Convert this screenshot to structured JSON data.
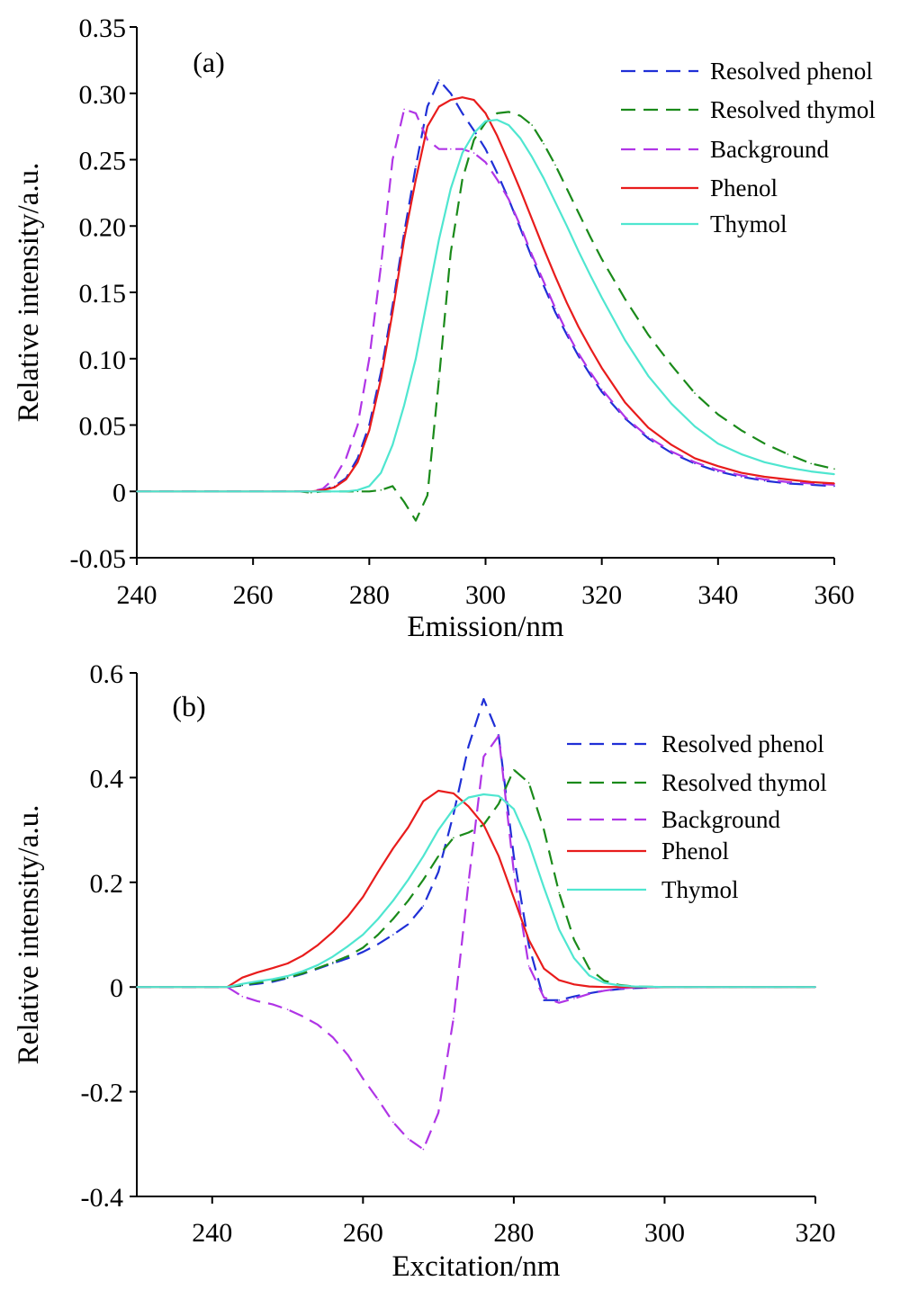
{
  "chart_data": [
    {
      "type": "line",
      "panel_label": "(a)",
      "xlabel": "Emission/nm",
      "ylabel": "Relative intensity/a.u.",
      "xlim": [
        240,
        360
      ],
      "ylim": [
        -0.05,
        0.35
      ],
      "xticks": [
        240,
        260,
        280,
        300,
        320,
        340,
        360
      ],
      "xtick_labels": [
        "240",
        "260",
        "280",
        "300",
        "320",
        "340",
        "360"
      ],
      "yticks": [
        -0.05,
        0,
        0.05,
        0.1,
        0.15,
        0.2,
        0.25,
        0.3,
        0.35
      ],
      "ytick_labels": [
        "-0.05",
        "0",
        "0.05",
        "0.10",
        "0.15",
        "0.20",
        "0.25",
        "0.30",
        "0.35"
      ],
      "grid": false,
      "legend_position": "top-right",
      "series": [
        {
          "name": "Resolved phenol",
          "color": "#1f2fd6",
          "dash": "dashed",
          "x": [
            240,
            270,
            272,
            274,
            276,
            278,
            280,
            282,
            284,
            286,
            288,
            290,
            292,
            294,
            296,
            298,
            300,
            302,
            304,
            306,
            308,
            310,
            312,
            314,
            316,
            318,
            320,
            324,
            328,
            332,
            336,
            340,
            344,
            348,
            352,
            356,
            360
          ],
          "y": [
            0,
            0,
            0.001,
            0.004,
            0.01,
            0.025,
            0.05,
            0.09,
            0.14,
            0.195,
            0.245,
            0.29,
            0.31,
            0.3,
            0.285,
            0.272,
            0.258,
            0.24,
            0.22,
            0.198,
            0.176,
            0.155,
            0.135,
            0.118,
            0.102,
            0.088,
            0.075,
            0.055,
            0.04,
            0.029,
            0.021,
            0.015,
            0.011,
            0.008,
            0.006,
            0.005,
            0.004
          ]
        },
        {
          "name": "Resolved thymol",
          "color": "#1a8a1a",
          "dash": "dashed",
          "x": [
            240,
            268,
            270,
            272,
            274,
            276,
            278,
            280,
            282,
            284,
            286,
            288,
            290,
            292,
            294,
            296,
            298,
            300,
            302,
            304,
            306,
            308,
            310,
            312,
            314,
            316,
            318,
            320,
            324,
            328,
            332,
            336,
            340,
            344,
            348,
            352,
            356,
            360
          ],
          "y": [
            0,
            0,
            -0.001,
            0,
            0,
            0,
            0,
            0,
            0.001,
            0.004,
            -0.008,
            -0.022,
            -0.003,
            0.085,
            0.18,
            0.235,
            0.265,
            0.278,
            0.285,
            0.286,
            0.283,
            0.276,
            0.262,
            0.246,
            0.228,
            0.21,
            0.192,
            0.175,
            0.145,
            0.118,
            0.095,
            0.074,
            0.058,
            0.046,
            0.036,
            0.028,
            0.021,
            0.017
          ]
        },
        {
          "name": "Background",
          "color": "#b035e6",
          "dash": "dashed",
          "x": [
            240,
            270,
            272,
            274,
            276,
            278,
            280,
            282,
            284,
            286,
            288,
            290,
            292,
            294,
            296,
            298,
            300,
            302,
            304,
            306,
            308,
            310,
            312,
            314,
            316,
            318,
            320,
            324,
            328,
            332,
            336,
            340,
            344,
            348,
            352,
            356,
            360
          ],
          "y": [
            0,
            0,
            0.002,
            0.01,
            0.025,
            0.05,
            0.1,
            0.17,
            0.25,
            0.288,
            0.285,
            0.265,
            0.258,
            0.258,
            0.258,
            0.255,
            0.248,
            0.235,
            0.22,
            0.2,
            0.178,
            0.158,
            0.138,
            0.12,
            0.104,
            0.09,
            0.077,
            0.056,
            0.041,
            0.03,
            0.022,
            0.016,
            0.012,
            0.009,
            0.007,
            0.006,
            0.005
          ]
        },
        {
          "name": "Phenol",
          "color": "#e81c1c",
          "dash": "solid",
          "x": [
            240,
            270,
            272,
            274,
            276,
            278,
            280,
            282,
            284,
            286,
            288,
            290,
            292,
            294,
            296,
            298,
            300,
            302,
            304,
            306,
            308,
            310,
            312,
            314,
            316,
            318,
            320,
            324,
            328,
            332,
            336,
            340,
            344,
            348,
            352,
            356,
            360
          ],
          "y": [
            0,
            0,
            0.001,
            0.003,
            0.009,
            0.022,
            0.046,
            0.085,
            0.135,
            0.19,
            0.235,
            0.275,
            0.29,
            0.295,
            0.297,
            0.295,
            0.285,
            0.268,
            0.248,
            0.227,
            0.205,
            0.183,
            0.162,
            0.142,
            0.124,
            0.108,
            0.093,
            0.067,
            0.048,
            0.035,
            0.025,
            0.019,
            0.014,
            0.011,
            0.009,
            0.007,
            0.006
          ]
        },
        {
          "name": "Thymol",
          "color": "#4fe6d0",
          "dash": "solid",
          "x": [
            240,
            274,
            276,
            278,
            280,
            282,
            284,
            286,
            288,
            290,
            292,
            294,
            296,
            298,
            300,
            302,
            304,
            306,
            308,
            310,
            312,
            314,
            316,
            318,
            320,
            324,
            328,
            332,
            336,
            340,
            344,
            348,
            352,
            356,
            360
          ],
          "y": [
            0,
            0,
            0,
            0.001,
            0.004,
            0.014,
            0.035,
            0.065,
            0.1,
            0.145,
            0.19,
            0.228,
            0.255,
            0.27,
            0.279,
            0.28,
            0.276,
            0.266,
            0.252,
            0.236,
            0.218,
            0.2,
            0.181,
            0.163,
            0.146,
            0.114,
            0.087,
            0.066,
            0.049,
            0.036,
            0.028,
            0.022,
            0.018,
            0.015,
            0.013
          ]
        }
      ]
    },
    {
      "type": "line",
      "panel_label": "(b)",
      "xlabel": "Excitation/nm",
      "ylabel": "Relative intensity/a.u.",
      "xlim": [
        230,
        320
      ],
      "ylim": [
        -0.4,
        0.6
      ],
      "xticks": [
        240,
        260,
        280,
        300,
        320
      ],
      "xtick_labels": [
        "240",
        "260",
        "280",
        "300",
        "320"
      ],
      "yticks": [
        -0.4,
        -0.2,
        0,
        0.2,
        0.4,
        0.6
      ],
      "ytick_labels": [
        "-0.4",
        "-0.2",
        "0",
        "0.2",
        "0.4",
        "0.6"
      ],
      "grid": false,
      "legend_position": "top-right",
      "series": [
        {
          "name": "Resolved phenol",
          "color": "#1f2fd6",
          "dash": "dashed",
          "x": [
            230,
            242,
            244,
            246,
            248,
            250,
            252,
            254,
            256,
            258,
            260,
            262,
            264,
            266,
            268,
            270,
            272,
            274,
            276,
            278,
            280,
            282,
            284,
            286,
            288,
            290,
            292,
            294,
            296,
            300,
            310,
            320
          ],
          "y": [
            0,
            0,
            0.003,
            0.006,
            0.01,
            0.017,
            0.025,
            0.035,
            0.045,
            0.055,
            0.067,
            0.082,
            0.1,
            0.12,
            0.155,
            0.22,
            0.33,
            0.46,
            0.55,
            0.48,
            0.25,
            0.08,
            -0.025,
            -0.025,
            -0.018,
            -0.012,
            -0.007,
            -0.004,
            -0.002,
            0,
            0,
            0
          ]
        },
        {
          "name": "Resolved thymol",
          "color": "#1a8a1a",
          "dash": "dashed",
          "x": [
            230,
            242,
            244,
            246,
            248,
            250,
            252,
            254,
            256,
            258,
            260,
            262,
            264,
            266,
            268,
            270,
            272,
            274,
            276,
            278,
            280,
            282,
            284,
            286,
            288,
            290,
            292,
            294,
            296,
            300,
            310,
            320
          ],
          "y": [
            0,
            0,
            0.004,
            0.008,
            0.012,
            0.018,
            0.026,
            0.036,
            0.047,
            0.059,
            0.075,
            0.1,
            0.13,
            0.165,
            0.205,
            0.25,
            0.285,
            0.295,
            0.31,
            0.35,
            0.415,
            0.39,
            0.3,
            0.18,
            0.09,
            0.035,
            0.012,
            0.004,
            0.001,
            0,
            0,
            0
          ]
        },
        {
          "name": "Background",
          "color": "#b035e6",
          "dash": "dashed",
          "x": [
            230,
            242,
            244,
            246,
            248,
            250,
            252,
            254,
            256,
            258,
            260,
            262,
            264,
            266,
            268,
            270,
            272,
            274,
            276,
            278,
            280,
            282,
            284,
            286,
            288,
            290,
            292,
            294,
            296,
            300,
            310,
            320
          ],
          "y": [
            0,
            0,
            -0.018,
            -0.027,
            -0.033,
            -0.043,
            -0.056,
            -0.072,
            -0.096,
            -0.13,
            -0.175,
            -0.215,
            -0.258,
            -0.29,
            -0.31,
            -0.24,
            -0.06,
            0.2,
            0.44,
            0.48,
            0.22,
            0.04,
            -0.02,
            -0.03,
            -0.022,
            -0.013,
            -0.007,
            -0.003,
            -0.001,
            0,
            0,
            0
          ]
        },
        {
          "name": "Phenol",
          "color": "#e81c1c",
          "dash": "solid",
          "x": [
            230,
            242,
            244,
            246,
            248,
            250,
            252,
            254,
            256,
            258,
            260,
            262,
            264,
            266,
            268,
            270,
            272,
            274,
            276,
            278,
            280,
            282,
            284,
            286,
            288,
            290,
            292,
            294,
            296,
            300,
            310,
            320
          ],
          "y": [
            0,
            0,
            0.018,
            0.028,
            0.036,
            0.045,
            0.06,
            0.08,
            0.105,
            0.135,
            0.172,
            0.22,
            0.265,
            0.305,
            0.355,
            0.375,
            0.37,
            0.345,
            0.31,
            0.25,
            0.17,
            0.09,
            0.035,
            0.013,
            0.005,
            0.001,
            0,
            0,
            0,
            0,
            0,
            0
          ]
        },
        {
          "name": "Thymol",
          "color": "#4fe6d0",
          "dash": "solid",
          "x": [
            230,
            242,
            244,
            246,
            248,
            250,
            252,
            254,
            256,
            258,
            260,
            262,
            264,
            266,
            268,
            270,
            272,
            274,
            276,
            278,
            280,
            282,
            284,
            286,
            288,
            290,
            292,
            294,
            296,
            300,
            310,
            320
          ],
          "y": [
            0,
            0,
            0.006,
            0.011,
            0.015,
            0.021,
            0.03,
            0.042,
            0.058,
            0.078,
            0.1,
            0.13,
            0.165,
            0.205,
            0.25,
            0.3,
            0.34,
            0.362,
            0.368,
            0.365,
            0.34,
            0.275,
            0.19,
            0.11,
            0.055,
            0.022,
            0.008,
            0.003,
            0.001,
            0,
            0,
            0
          ]
        }
      ]
    }
  ]
}
